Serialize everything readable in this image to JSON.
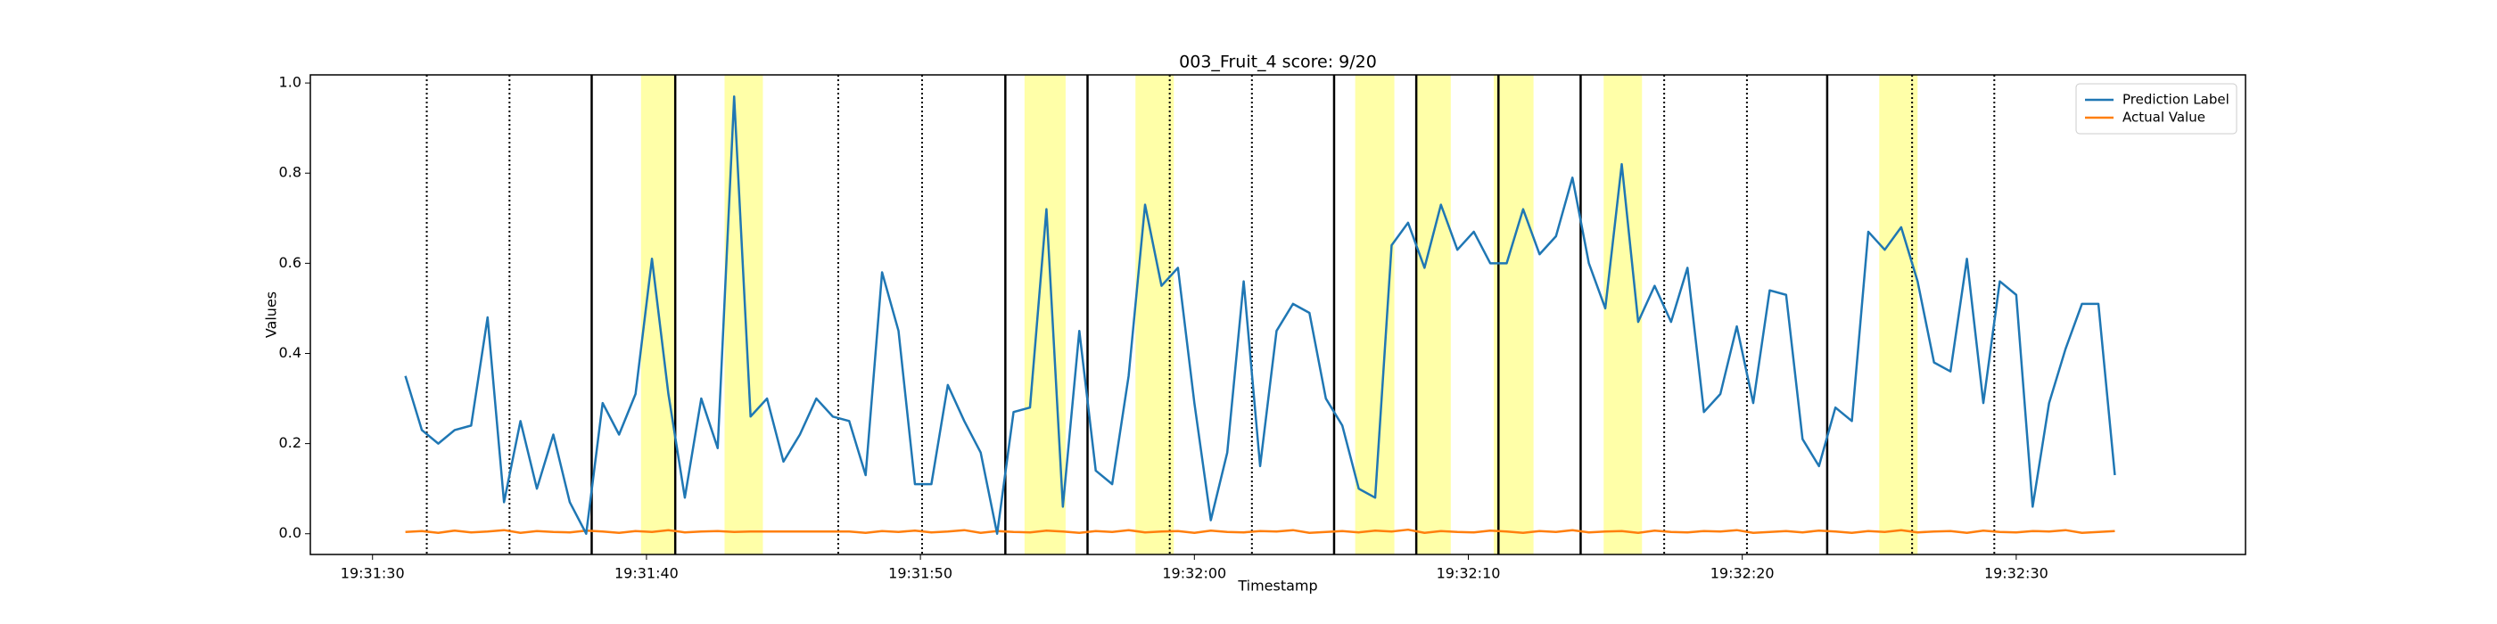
{
  "chart_data": {
    "type": "line",
    "title": "003_Fruit_4 score: 9/20",
    "x_label": "Timestamp",
    "y_label": "Values",
    "x": [
      70291.2,
      70291.8,
      70292.4,
      70293.0,
      70293.6,
      70294.2,
      70294.8,
      70295.4,
      70296.0,
      70296.6,
      70297.2,
      70297.8,
      70298.4,
      70299.0,
      70299.6,
      70300.2,
      70300.8,
      70301.4,
      70302.0,
      70302.6,
      70303.2,
      70303.8,
      70304.4,
      70305.0,
      70305.6,
      70306.2,
      70306.8,
      70307.4,
      70308.0,
      70308.6,
      70309.2,
      70309.8,
      70310.4,
      70311.0,
      70311.6,
      70312.2,
      70312.8,
      70313.4,
      70314.0,
      70314.6,
      70315.2,
      70315.8,
      70316.4,
      70317.0,
      70317.6,
      70318.2,
      70318.8,
      70319.4,
      70320.0,
      70320.6,
      70321.2,
      70321.8,
      70322.4,
      70323.0,
      70323.6,
      70324.2,
      70324.8,
      70325.4,
      70326.0,
      70326.6,
      70327.2,
      70327.8,
      70328.4,
      70329.0,
      70329.6,
      70330.2,
      70330.8,
      70331.4,
      70332.0,
      70332.6,
      70333.2,
      70333.8,
      70334.4,
      70335.0,
      70335.6,
      70336.2,
      70336.8,
      70337.4,
      70338.0,
      70338.6,
      70339.2,
      70339.8,
      70340.4,
      70341.0,
      70341.6,
      70342.2,
      70342.8,
      70343.4,
      70344.0,
      70344.6,
      70345.2,
      70345.8,
      70346.4,
      70347.0,
      70347.6,
      70348.2,
      70348.8,
      70349.4,
      70350.0,
      70350.6,
      70351.2,
      70351.8,
      70352.4,
      70353.0,
      70353.6
    ],
    "series": [
      {
        "name": "Prediction Label",
        "color": "#1f77b4",
        "values": [
          0.35,
          0.23,
          0.2,
          0.23,
          0.24,
          0.48,
          0.07,
          0.25,
          0.1,
          0.22,
          0.07,
          0.0,
          0.29,
          0.22,
          0.31,
          0.61,
          0.31,
          0.08,
          0.3,
          0.19,
          0.97,
          0.26,
          0.3,
          0.16,
          0.22,
          0.3,
          0.26,
          0.25,
          0.13,
          0.58,
          0.45,
          0.11,
          0.11,
          0.33,
          0.25,
          0.18,
          0.0,
          0.27,
          0.28,
          0.72,
          0.06,
          0.45,
          0.14,
          0.11,
          0.35,
          0.73,
          0.55,
          0.59,
          0.29,
          0.03,
          0.18,
          0.56,
          0.15,
          0.45,
          0.51,
          0.49,
          0.3,
          0.24,
          0.1,
          0.08,
          0.64,
          0.69,
          0.59,
          0.73,
          0.63,
          0.67,
          0.6,
          0.6,
          0.72,
          0.62,
          0.66,
          0.79,
          0.6,
          0.5,
          0.82,
          0.47,
          0.55,
          0.47,
          0.59,
          0.27,
          0.31,
          0.46,
          0.29,
          0.54,
          0.53,
          0.21,
          0.15,
          0.28,
          0.25,
          0.67,
          0.63,
          0.68,
          0.56,
          0.38,
          0.36,
          0.61,
          0.29,
          0.56,
          0.53,
          0.06,
          0.29,
          0.41,
          0.51,
          0.51,
          0.13
        ]
      },
      {
        "name": "Actual Value",
        "color": "#ff7f0e",
        "values": [
          0.004,
          0.006,
          0.002,
          0.007,
          0.003,
          0.005,
          0.008,
          0.002,
          0.006,
          0.004,
          0.003,
          0.007,
          0.005,
          0.002,
          0.006,
          0.004,
          0.008,
          0.003,
          0.005,
          0.006,
          0.004,
          0.005,
          0.005,
          0.005,
          0.005,
          0.005,
          0.005,
          0.005,
          0.002,
          0.006,
          0.004,
          0.007,
          0.003,
          0.005,
          0.008,
          0.002,
          0.006,
          0.004,
          0.003,
          0.007,
          0.005,
          0.002,
          0.006,
          0.004,
          0.008,
          0.003,
          0.005,
          0.006,
          0.002,
          0.007,
          0.004,
          0.003,
          0.006,
          0.005,
          0.008,
          0.002,
          0.004,
          0.006,
          0.003,
          0.007,
          0.005,
          0.009,
          0.002,
          0.006,
          0.004,
          0.003,
          0.007,
          0.005,
          0.002,
          0.006,
          0.004,
          0.008,
          0.003,
          0.005,
          0.006,
          0.002,
          0.007,
          0.004,
          0.003,
          0.006,
          0.005,
          0.008,
          0.002,
          0.004,
          0.006,
          0.003,
          0.007,
          0.005,
          0.002,
          0.006,
          0.004,
          0.008,
          0.003,
          0.005,
          0.006,
          0.002,
          0.007,
          0.004,
          0.003,
          0.006,
          0.005,
          0.008,
          0.002,
          0.004,
          0.006
        ]
      }
    ],
    "dotted_lines": [
      70291.98,
      70295.0,
      70307.0,
      70310.06,
      70319.1,
      70322.1,
      70337.15,
      70340.17,
      70346.2,
      70349.2
    ],
    "solid_lines": [
      70298.0,
      70301.05,
      70313.1,
      70316.1,
      70325.1,
      70328.1,
      70331.1,
      70334.1,
      70343.1
    ],
    "spans": [
      [
        70299.8,
        70301.05
      ],
      [
        70302.85,
        70304.25
      ],
      [
        70313.8,
        70315.3
      ],
      [
        70317.85,
        70319.25
      ],
      [
        70325.87,
        70327.3
      ],
      [
        70328.1,
        70329.36
      ],
      [
        70330.93,
        70332.38
      ],
      [
        70334.94,
        70336.34
      ],
      [
        70345.0,
        70346.4
      ]
    ],
    "span_color": "#ffffa8",
    "xlim": [
      70287.73,
      70358.37
    ],
    "xticks": [
      {
        "value": 70290,
        "label": "19:31:30"
      },
      {
        "value": 70300,
        "label": "19:31:40"
      },
      {
        "value": 70310,
        "label": "19:31:50"
      },
      {
        "value": 70320,
        "label": "19:32:00"
      },
      {
        "value": 70330,
        "label": "19:32:10"
      },
      {
        "value": 70340,
        "label": "19:32:20"
      },
      {
        "value": 70350,
        "label": "19:32:30"
      }
    ],
    "ylim": [
      -0.046,
      1.018
    ],
    "yticks": [
      {
        "value": 0,
        "label": "0.0"
      },
      {
        "value": 0.2,
        "label": "0.2"
      },
      {
        "value": 0.4,
        "label": "0.4"
      },
      {
        "value": 0.6,
        "label": "0.6"
      },
      {
        "value": 0.8,
        "label": "0.8"
      },
      {
        "value": 1.0,
        "label": "1.0"
      }
    ],
    "legend": "upper right"
  }
}
